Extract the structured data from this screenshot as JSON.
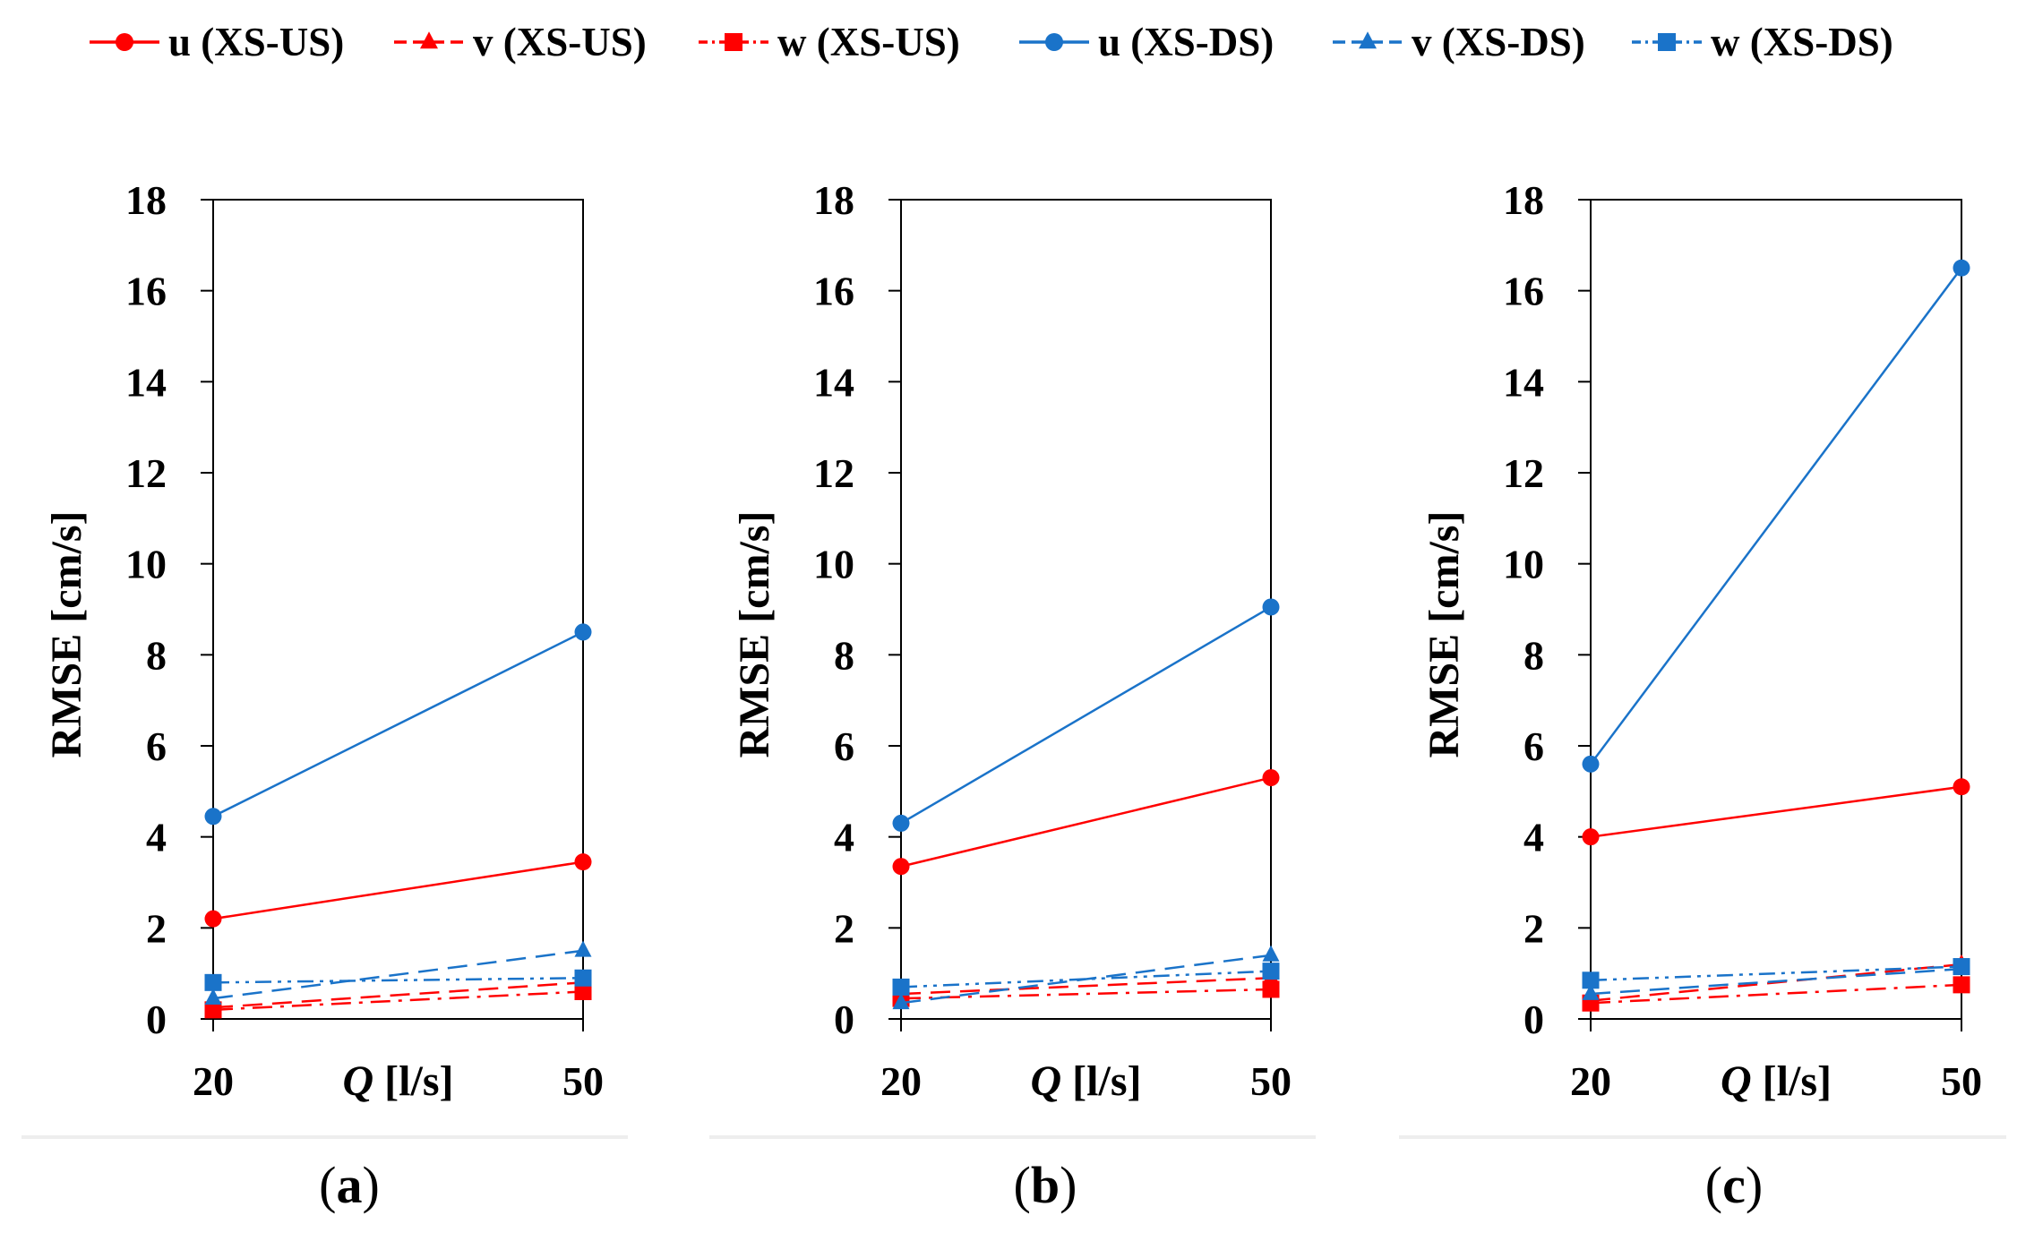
{
  "legend": [
    {
      "label": "u (XS-US)",
      "color": "#FF0000",
      "marker": "circle",
      "dash": "solid"
    },
    {
      "label": "v (XS-US)",
      "color": "#FF0000",
      "marker": "triangle",
      "dash": "dash"
    },
    {
      "label": "w (XS-US)",
      "color": "#FF0000",
      "marker": "square",
      "dash": "dashdot"
    },
    {
      "label": "u (XS-DS)",
      "color": "#1A73C9",
      "marker": "circle",
      "dash": "solid"
    },
    {
      "label": "v (XS-DS)",
      "color": "#1A73C9",
      "marker": "triangle",
      "dash": "dash"
    },
    {
      "label": "w (XS-DS)",
      "color": "#1A73C9",
      "marker": "square",
      "dash": "dashdotdot"
    }
  ],
  "chart_data": [
    {
      "type": "line",
      "caption": "a",
      "x": [
        20,
        50
      ],
      "xtick_labels": [
        "20",
        "50"
      ],
      "xlabel_italic": "Q",
      "xlabel_rest": " [l/s]",
      "ylabel": "RMSE [cm/s]",
      "ylim": [
        0,
        18
      ],
      "yticks": [
        0,
        2,
        4,
        6,
        8,
        10,
        12,
        14,
        16,
        18
      ],
      "series": [
        {
          "name": "u (XS-US)",
          "values": [
            2.2,
            3.45
          ]
        },
        {
          "name": "v (XS-US)",
          "values": [
            0.25,
            0.8
          ]
        },
        {
          "name": "w (XS-US)",
          "values": [
            0.2,
            0.6
          ]
        },
        {
          "name": "u (XS-DS)",
          "values": [
            4.45,
            8.5
          ]
        },
        {
          "name": "v (XS-DS)",
          "values": [
            0.45,
            1.5
          ]
        },
        {
          "name": "w (XS-DS)",
          "values": [
            0.8,
            0.9
          ]
        }
      ]
    },
    {
      "type": "line",
      "caption": "b",
      "x": [
        20,
        50
      ],
      "xtick_labels": [
        "20",
        "50"
      ],
      "xlabel_italic": "Q",
      "xlabel_rest": " [l/s]",
      "ylabel": "RMSE [cm/s]",
      "ylim": [
        0,
        18
      ],
      "yticks": [
        0,
        2,
        4,
        6,
        8,
        10,
        12,
        14,
        16,
        18
      ],
      "series": [
        {
          "name": "u (XS-US)",
          "values": [
            3.35,
            5.3
          ]
        },
        {
          "name": "v (XS-US)",
          "values": [
            0.55,
            0.9
          ]
        },
        {
          "name": "w (XS-US)",
          "values": [
            0.45,
            0.65
          ]
        },
        {
          "name": "u (XS-DS)",
          "values": [
            4.3,
            9.05
          ]
        },
        {
          "name": "v (XS-DS)",
          "values": [
            0.35,
            1.4
          ]
        },
        {
          "name": "w (XS-DS)",
          "values": [
            0.7,
            1.05
          ]
        }
      ]
    },
    {
      "type": "line",
      "caption": "c",
      "x": [
        20,
        50
      ],
      "xtick_labels": [
        "20",
        "50"
      ],
      "xlabel_italic": "Q",
      "xlabel_rest": " [l/s]",
      "ylabel": "RMSE [cm/s]",
      "ylim": [
        0,
        18
      ],
      "yticks": [
        0,
        2,
        4,
        6,
        8,
        10,
        12,
        14,
        16,
        18
      ],
      "series": [
        {
          "name": "u (XS-US)",
          "values": [
            4.0,
            5.1
          ]
        },
        {
          "name": "v (XS-US)",
          "values": [
            0.4,
            1.2
          ]
        },
        {
          "name": "w (XS-US)",
          "values": [
            0.35,
            0.75
          ]
        },
        {
          "name": "u (XS-DS)",
          "values": [
            5.6,
            16.5
          ]
        },
        {
          "name": "v (XS-DS)",
          "values": [
            0.55,
            1.1
          ]
        },
        {
          "name": "w (XS-DS)",
          "values": [
            0.85,
            1.15
          ]
        }
      ]
    }
  ]
}
